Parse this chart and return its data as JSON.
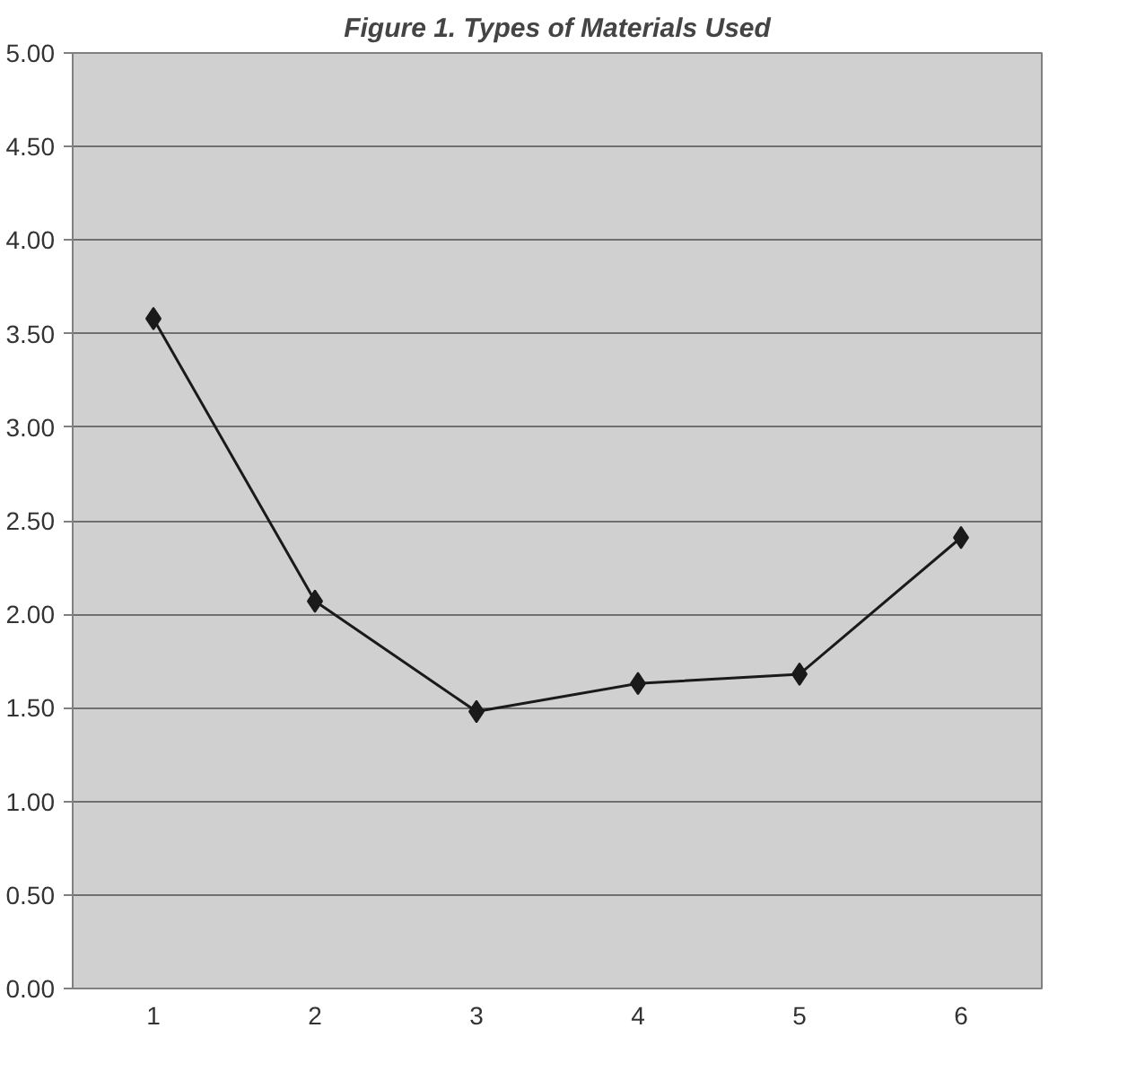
{
  "chart_data": {
    "type": "line",
    "title": "Figure 1. Types of Materials Used",
    "categories": [
      "1",
      "2",
      "3",
      "4",
      "5",
      "6"
    ],
    "series": [
      {
        "color": "#1a1a1a",
        "values": [
          3.58,
          2.07,
          1.48,
          1.63,
          1.68,
          2.41
        ]
      }
    ],
    "ylim": [
      0,
      5
    ],
    "yticks": [
      {
        "value": 0,
        "label": "0.00"
      },
      {
        "value": 0.5,
        "label": "0.50"
      },
      {
        "value": 1,
        "label": "1.00"
      },
      {
        "value": 1.5,
        "label": "1.50"
      },
      {
        "value": 2,
        "label": "2.00"
      },
      {
        "value": 2.5,
        "label": "2.50"
      },
      {
        "value": 3,
        "label": "3.00"
      },
      {
        "value": 3.5,
        "label": "3.50"
      },
      {
        "value": 4,
        "label": "4.00"
      },
      {
        "value": 4.5,
        "label": "4.50"
      },
      {
        "value": 5,
        "label": "5.00"
      }
    ],
    "grid": "y",
    "marker": "diamond",
    "line_style": "solid"
  }
}
